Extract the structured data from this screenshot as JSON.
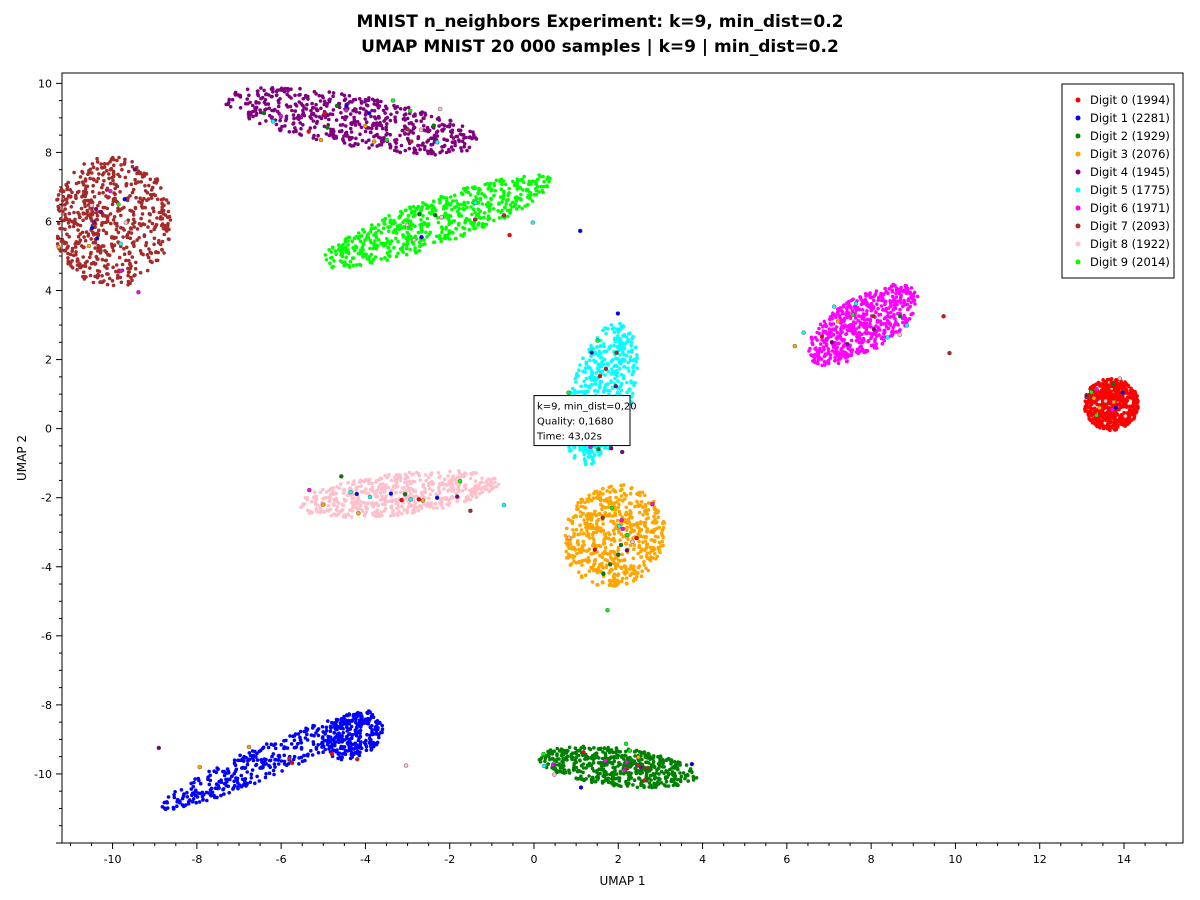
{
  "chart_data": {
    "type": "scatter",
    "title": "MNIST n_neighbors Experiment: k=9, min_dist=0.2",
    "subtitle": "UMAP MNIST 20 000 samples | k=9 | min_dist=0.2",
    "xlabel": "UMAP 1",
    "ylabel": "UMAP 2",
    "xlim": [
      -11.2,
      15.4
    ],
    "ylim": [
      -12.0,
      10.3
    ],
    "x_ticks": [
      -10,
      -8,
      -6,
      -4,
      -2,
      0,
      2,
      4,
      6,
      8,
      10,
      12,
      14
    ],
    "y_ticks": [
      -10,
      -8,
      -6,
      -4,
      -2,
      0,
      2,
      4,
      6,
      8,
      10
    ],
    "grid": false,
    "legend_position": "top-right",
    "series": [
      {
        "name": "Digit 0 (1994)",
        "color": "#ff0000",
        "count": 1994,
        "clusters": [
          {
            "cx": 13.7,
            "cy": 0.7,
            "sx": 1.3,
            "sy": 1.5,
            "angle": 0,
            "n": 620
          }
        ]
      },
      {
        "name": "Digit 1 (2281)",
        "color": "#0000ff",
        "count": 2281,
        "clusters": [
          {
            "cx": -6.3,
            "cy": -9.6,
            "sx": 5.9,
            "sy": 0.9,
            "angle": 28,
            "n": 360
          },
          {
            "cx": -4.3,
            "cy": -8.9,
            "sx": 1.6,
            "sy": 1.2,
            "angle": 40,
            "n": 230
          }
        ]
      },
      {
        "name": "Digit 2 (1929)",
        "color": "#008000",
        "count": 1929,
        "clusters": [
          {
            "cx": 2.0,
            "cy": -9.8,
            "sx": 3.8,
            "sy": 1.1,
            "angle": -8,
            "n": 560
          }
        ]
      },
      {
        "name": "Digit 3 (2076)",
        "color": "#ffa500",
        "count": 2076,
        "clusters": [
          {
            "cx": 1.9,
            "cy": -3.1,
            "sx": 2.4,
            "sy": 3.0,
            "angle": -10,
            "n": 600
          }
        ]
      },
      {
        "name": "Digit 4 (1945)",
        "color": "#800080",
        "count": 1945,
        "clusters": [
          {
            "cx": -4.3,
            "cy": 8.9,
            "sx": 6.2,
            "sy": 1.5,
            "angle": -12,
            "n": 560
          }
        ]
      },
      {
        "name": "Digit 5 (1775)",
        "color": "#00ffff",
        "count": 1775,
        "clusters": [
          {
            "cx": 1.6,
            "cy": 1.0,
            "sx": 1.5,
            "sy": 4.2,
            "angle": -12,
            "n": 520
          }
        ]
      },
      {
        "name": "Digit 6 (1971)",
        "color": "#ff00ff",
        "count": 1971,
        "clusters": [
          {
            "cx": 7.8,
            "cy": 3.0,
            "sx": 3.2,
            "sy": 1.5,
            "angle": 40,
            "n": 560
          }
        ]
      },
      {
        "name": "Digit 7 (2093)",
        "color": "#a52a2a",
        "count": 2093,
        "clusters": [
          {
            "cx": -10.0,
            "cy": 6.0,
            "sx": 2.8,
            "sy": 3.8,
            "angle": 0,
            "n": 600
          }
        ]
      },
      {
        "name": "Digit 8 (1922)",
        "color": "#ffc0cb",
        "count": 1922,
        "clusters": [
          {
            "cx": -3.2,
            "cy": -1.9,
            "sx": 4.8,
            "sy": 1.2,
            "angle": 8,
            "n": 540
          }
        ]
      },
      {
        "name": "Digit 9 (2014)",
        "color": "#00ff00",
        "count": 2014,
        "clusters": [
          {
            "cx": -2.3,
            "cy": 6.0,
            "sx": 6.0,
            "sy": 1.3,
            "angle": 24,
            "n": 580
          }
        ]
      }
    ],
    "annotation": {
      "lines": [
        "k=9, min_dist=0,20",
        "Quality: 0,1680",
        "Time: 43,02s"
      ],
      "x": 0.0,
      "y": 0.9
    }
  }
}
